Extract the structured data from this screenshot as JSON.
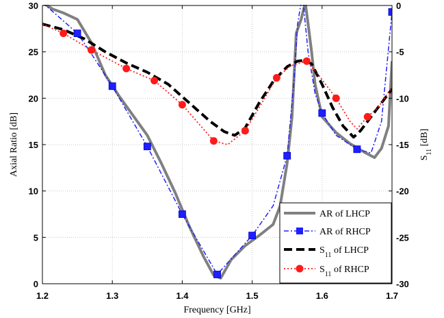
{
  "chart_data": {
    "type": "line",
    "x_label": "Frequency [GHz]",
    "y_left_label": "Axial Ratio [dB]",
    "y_right_label": {
      "main": "S",
      "sub": "11",
      "unit": " [dB]"
    },
    "xlim": [
      1.2,
      1.7
    ],
    "ylim_left": [
      0,
      30
    ],
    "ylim_right": [
      -30,
      0
    ],
    "x_ticks": [
      "1.2",
      "1.3",
      "1.4",
      "1.5",
      "1.6",
      "1.7"
    ],
    "y_left_ticks": [
      "0",
      "5",
      "10",
      "15",
      "20",
      "25",
      "30"
    ],
    "y_right_ticks": [
      "-30",
      "-25",
      "-20",
      "-15",
      "-10",
      "-5",
      "0"
    ],
    "grid": true,
    "legend_position": "bottom-right",
    "series": [
      {
        "name": "AR of LHCP",
        "axis": "left",
        "color": "#808080",
        "style": "solid",
        "marker": "none",
        "x": [
          1.2,
          1.215,
          1.23,
          1.25,
          1.27,
          1.29,
          1.31,
          1.33,
          1.35,
          1.37,
          1.39,
          1.41,
          1.43,
          1.445,
          1.455,
          1.47,
          1.49,
          1.51,
          1.53,
          1.54,
          1.55,
          1.557,
          1.563,
          1.57,
          1.576,
          1.58,
          1.585,
          1.59,
          1.6,
          1.62,
          1.64,
          1.66,
          1.675,
          1.685,
          1.695,
          1.7
        ],
        "y": [
          30.3,
          29.6,
          29.2,
          28.5,
          26.0,
          22.5,
          20.2,
          18.1,
          16.0,
          13.0,
          9.8,
          6.2,
          3.0,
          0.9,
          0.6,
          2.6,
          4.1,
          5.2,
          6.4,
          8.4,
          13.0,
          18.0,
          27.0,
          28.5,
          30.3,
          28.0,
          25.0,
          21.5,
          18.0,
          16.3,
          15.1,
          14.2,
          13.6,
          14.6,
          17.0,
          24.0
        ]
      },
      {
        "name": "AR of RHCP",
        "axis": "left",
        "color": "#1f1fff",
        "style": "dashdot",
        "marker": "square",
        "x": [
          1.2,
          1.22,
          1.25,
          1.27,
          1.3,
          1.35,
          1.4,
          1.45,
          1.5,
          1.53,
          1.55,
          1.56,
          1.565,
          1.57,
          1.573,
          1.58,
          1.59,
          1.6,
          1.62,
          1.65,
          1.67,
          1.685,
          1.7
        ],
        "y": [
          30.3,
          29.0,
          27.0,
          24.8,
          21.3,
          14.8,
          7.5,
          1.0,
          5.2,
          8.4,
          13.8,
          22.0,
          28.0,
          30.3,
          30.3,
          25.0,
          20.5,
          18.4,
          16.0,
          14.5,
          14.1,
          17.5,
          29.3
        ],
        "markers_x": [
          1.25,
          1.3,
          1.35,
          1.4,
          1.45,
          1.5,
          1.55,
          1.6,
          1.65,
          1.7
        ],
        "markers_y": [
          27.0,
          21.3,
          14.8,
          7.5,
          1.0,
          5.2,
          13.8,
          18.4,
          14.5,
          29.3
        ]
      },
      {
        "name_main": "S",
        "name_sub": "11",
        "name_rest": " of LHCP",
        "axis": "right",
        "color": "#000000",
        "style": "dashed",
        "marker": "none",
        "x": [
          1.2,
          1.23,
          1.26,
          1.29,
          1.32,
          1.35,
          1.38,
          1.41,
          1.44,
          1.46,
          1.475,
          1.49,
          1.51,
          1.53,
          1.55,
          1.565,
          1.575,
          1.585,
          1.6,
          1.615,
          1.63,
          1.645,
          1.655,
          1.67,
          1.685,
          1.7
        ],
        "y": [
          -2.0,
          -2.6,
          -3.6,
          -5.0,
          -6.2,
          -7.2,
          -8.5,
          -10.5,
          -12.5,
          -13.6,
          -14.0,
          -13.2,
          -10.5,
          -8.2,
          -6.6,
          -6.0,
          -5.9,
          -6.3,
          -8.5,
          -11.0,
          -13.0,
          -14.2,
          -13.5,
          -12.0,
          -10.5,
          -9.0
        ]
      },
      {
        "name_main": "S",
        "name_sub": "11",
        "name_rest": " of RHCP",
        "axis": "right",
        "color": "#ff1a1a",
        "style": "dotted",
        "marker": "circle",
        "x": [
          1.2,
          1.23,
          1.27,
          1.32,
          1.36,
          1.4,
          1.445,
          1.465,
          1.49,
          1.51,
          1.535,
          1.555,
          1.578,
          1.595,
          1.62,
          1.64,
          1.65,
          1.665,
          1.68,
          1.7
        ],
        "y": [
          -2.0,
          -3.0,
          -4.8,
          -6.8,
          -8.1,
          -10.7,
          -14.6,
          -15.0,
          -13.5,
          -11.0,
          -7.8,
          -6.5,
          -6.0,
          -7.5,
          -10.0,
          -12.5,
          -13.3,
          -12.0,
          -11.0,
          -8.8
        ],
        "markers_x": [
          1.23,
          1.27,
          1.32,
          1.36,
          1.4,
          1.445,
          1.49,
          1.535,
          1.578,
          1.62,
          1.665
        ],
        "markers_y": [
          -3.0,
          -4.8,
          -6.8,
          -8.1,
          -10.7,
          -14.6,
          -13.5,
          -7.8,
          -6.0,
          -10.0,
          -12.0
        ]
      }
    ]
  }
}
